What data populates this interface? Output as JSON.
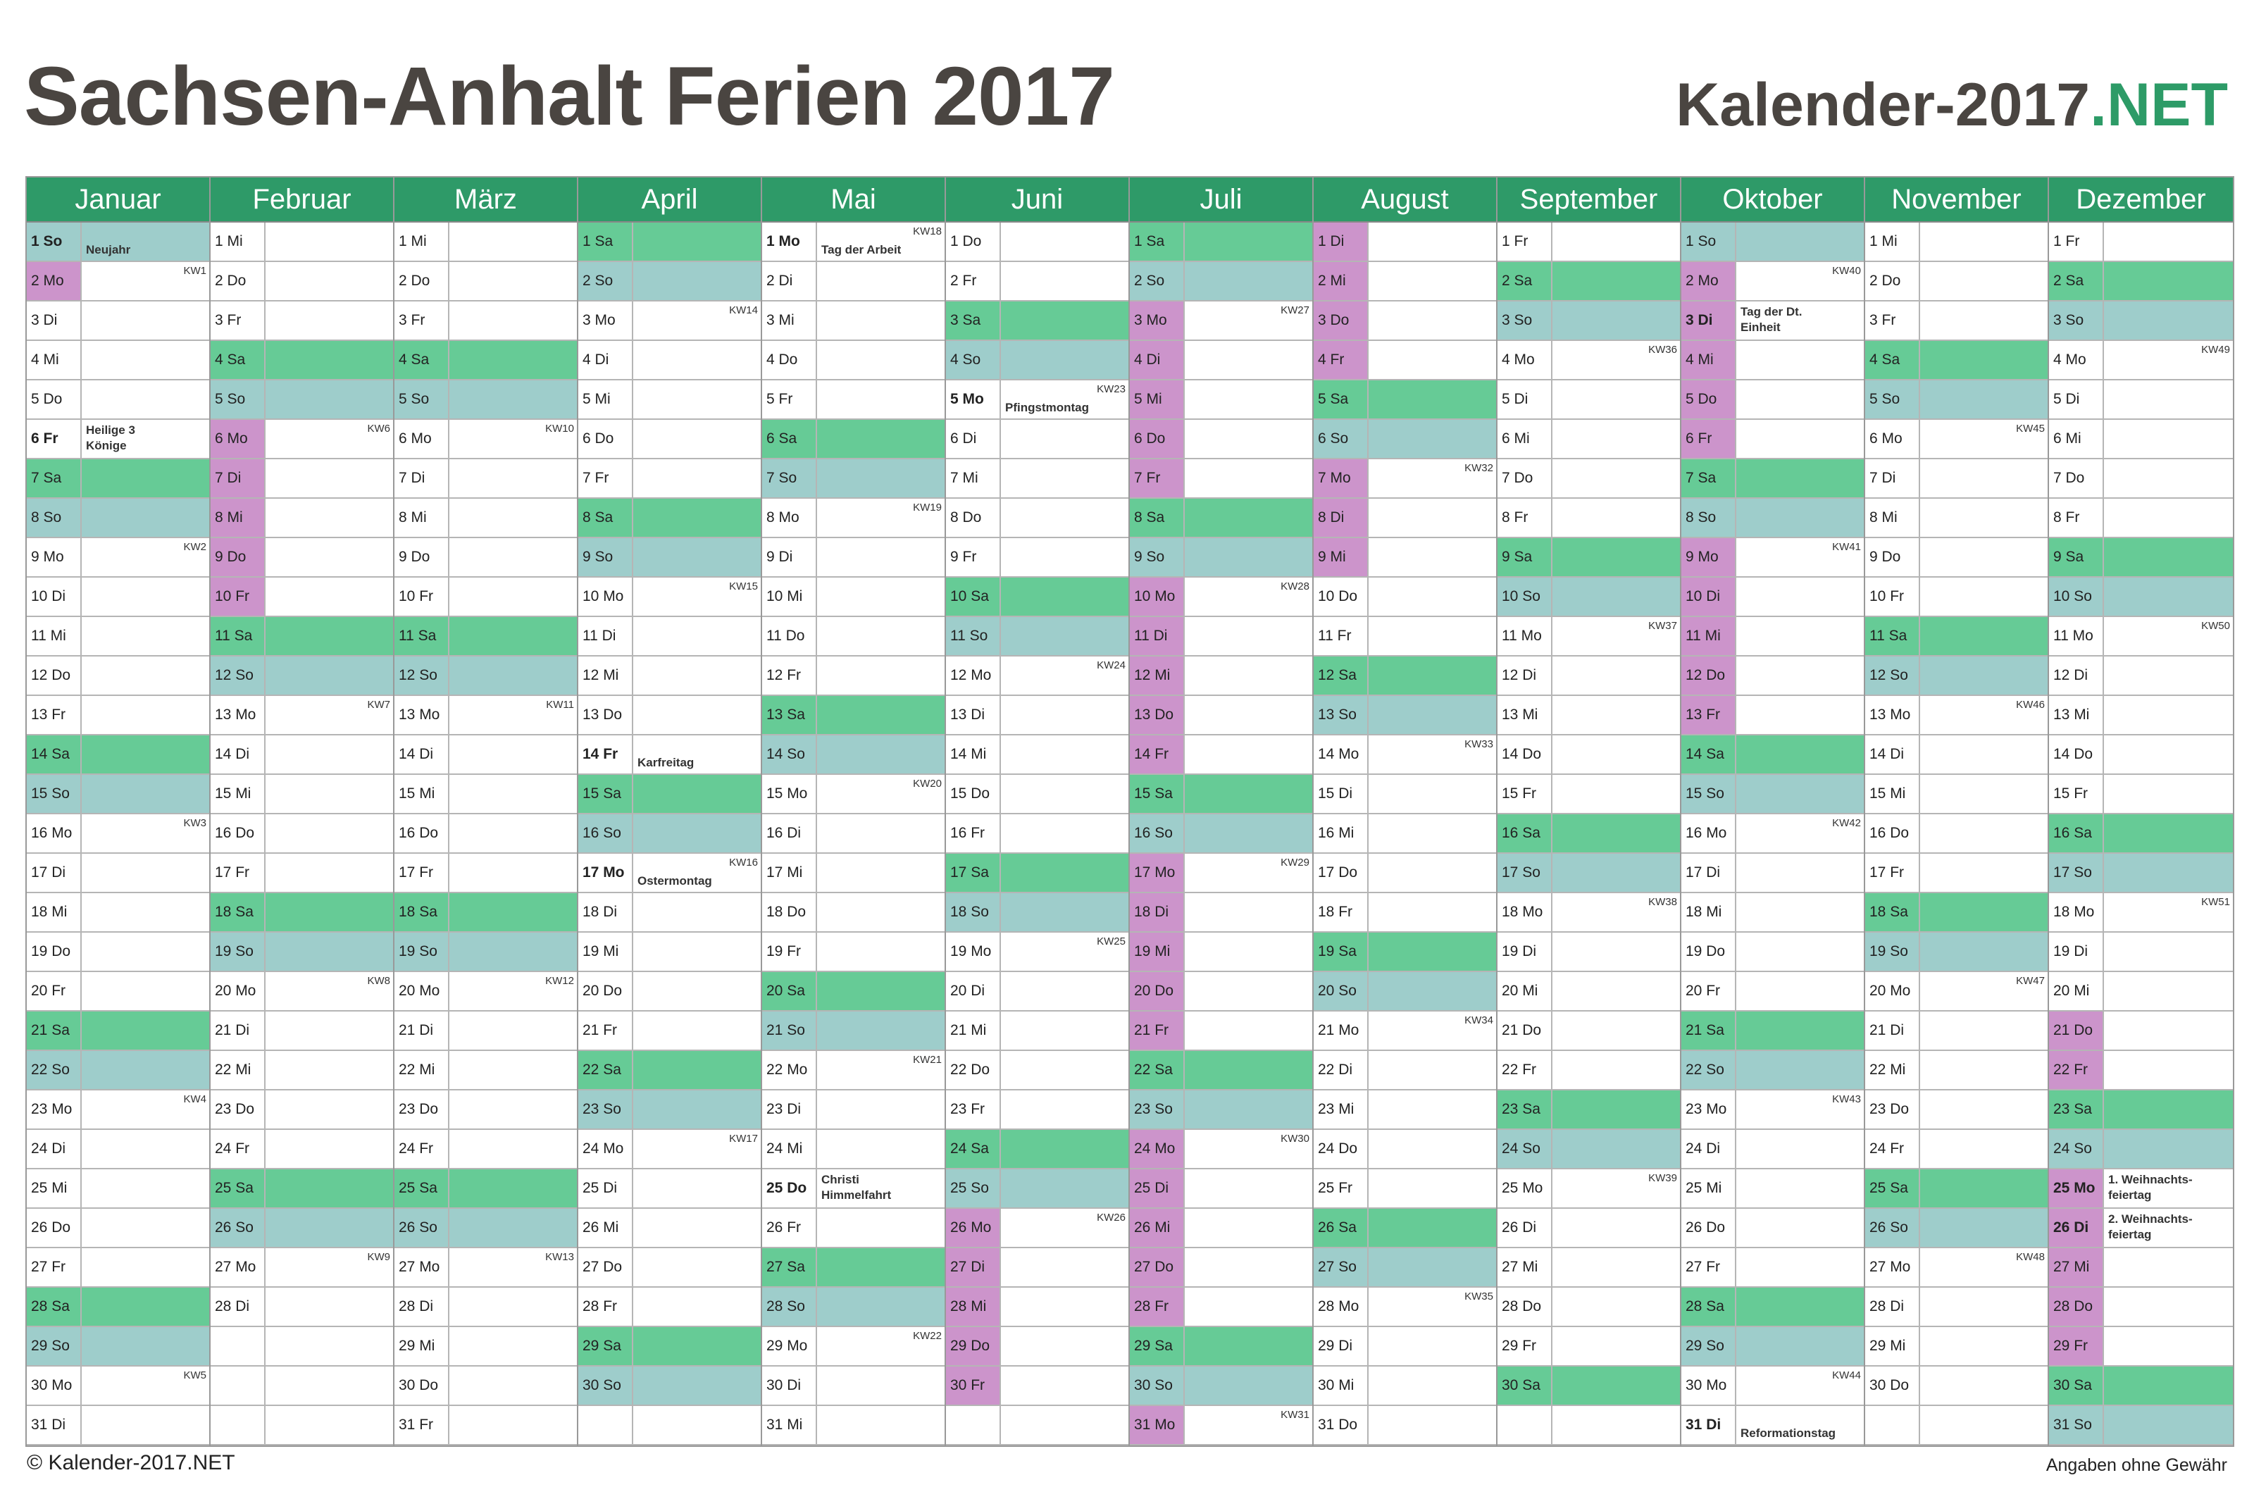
{
  "title": "Sachsen-Anhalt Ferien 2017",
  "brand": {
    "main": "Kalender-2017",
    "suffix": ".NET"
  },
  "footer": {
    "copyright": "© Kalender-2017.NET",
    "disclaimer": "Angaben ohne Gewähr"
  },
  "colors": {
    "header": "#2e9a68",
    "saturday": "#66cb96",
    "sunday": "#9ecdcb",
    "ferien": "#cc94cb",
    "brand_accent": "#2d9b67"
  },
  "months": [
    {
      "name": "Januar",
      "days": [
        "1 So",
        "2 Mo",
        "3 Di",
        "4 Mi",
        "5 Do",
        "6 Fr",
        "7 Sa",
        "8 So",
        "9 Mo",
        "10 Di",
        "11 Mi",
        "12 Do",
        "13 Fr",
        "14 Sa",
        "15 So",
        "16 Mo",
        "17 Di",
        "18 Mi",
        "19 Do",
        "20 Fr",
        "21 Sa",
        "22 So",
        "23 Mo",
        "24 Di",
        "25 Mi",
        "26 Do",
        "27 Fr",
        "28 Sa",
        "29 So",
        "30 Mo",
        "31 Di"
      ],
      "week_labels": {
        "2": "KW1",
        "9": "KW2",
        "16": "KW3",
        "23": "KW4",
        "30": "KW5"
      },
      "holidays": {
        "1": "Neujahr",
        "6": "Heilige 3\nKönige"
      },
      "ferien": [
        2
      ]
    },
    {
      "name": "Februar",
      "days": [
        "1 Mi",
        "2 Do",
        "3 Fr",
        "4 Sa",
        "5 So",
        "6 Mo",
        "7 Di",
        "8 Mi",
        "9 Do",
        "10 Fr",
        "11 Sa",
        "12 So",
        "13 Mo",
        "14 Di",
        "15 Mi",
        "16 Do",
        "17 Fr",
        "18 Sa",
        "19 So",
        "20 Mo",
        "21 Di",
        "22 Mi",
        "23 Do",
        "24 Fr",
        "25 Sa",
        "26 So",
        "27 Mo",
        "28 Di"
      ],
      "week_labels": {
        "6": "KW6",
        "13": "KW7",
        "20": "KW8",
        "27": "KW9"
      },
      "holidays": {},
      "ferien": [
        6,
        7,
        8,
        9,
        10
      ]
    },
    {
      "name": "März",
      "days": [
        "1 Mi",
        "2 Do",
        "3 Fr",
        "4 Sa",
        "5 So",
        "6 Mo",
        "7 Di",
        "8 Mi",
        "9 Do",
        "10 Fr",
        "11 Sa",
        "12 So",
        "13 Mo",
        "14 Di",
        "15 Mi",
        "16 Do",
        "17 Fr",
        "18 Sa",
        "19 So",
        "20 Mo",
        "21 Di",
        "22 Mi",
        "23 Do",
        "24 Fr",
        "25 Sa",
        "26 So",
        "27 Mo",
        "28 Di",
        "29 Mi",
        "30 Do",
        "31 Fr"
      ],
      "week_labels": {
        "6": "KW10",
        "13": "KW11",
        "20": "KW12",
        "27": "KW13"
      },
      "holidays": {},
      "ferien": []
    },
    {
      "name": "April",
      "days": [
        "1 Sa",
        "2 So",
        "3 Mo",
        "4 Di",
        "5 Mi",
        "6 Do",
        "7 Fr",
        "8 Sa",
        "9 So",
        "10 Mo",
        "11 Di",
        "12 Mi",
        "13 Do",
        "14 Fr",
        "15 Sa",
        "16 So",
        "17 Mo",
        "18 Di",
        "19 Mi",
        "20 Do",
        "21 Fr",
        "22 Sa",
        "23 So",
        "24 Mo",
        "25 Di",
        "26 Mi",
        "27 Do",
        "28 Fr",
        "29 Sa",
        "30 So"
      ],
      "week_labels": {
        "3": "KW14",
        "10": "KW15",
        "17": "KW16",
        "24": "KW17"
      },
      "holidays": {
        "14": "Karfreitag",
        "17": "Ostermontag"
      },
      "ferien": []
    },
    {
      "name": "Mai",
      "days": [
        "1 Mo",
        "2 Di",
        "3 Mi",
        "4 Do",
        "5 Fr",
        "6 Sa",
        "7 So",
        "8 Mo",
        "9 Di",
        "10 Mi",
        "11 Do",
        "12 Fr",
        "13 Sa",
        "14 So",
        "15 Mo",
        "16 Di",
        "17 Mi",
        "18 Do",
        "19 Fr",
        "20 Sa",
        "21 So",
        "22 Mo",
        "23 Di",
        "24 Mi",
        "25 Do",
        "26 Fr",
        "27 Sa",
        "28 So",
        "29 Mo",
        "30 Di",
        "31 Mi"
      ],
      "week_labels": {
        "1": "KW18",
        "8": "KW19",
        "15": "KW20",
        "22": "KW21",
        "29": "KW22"
      },
      "holidays": {
        "1": "Tag der Arbeit",
        "25": "Christi\nHimmelfahrt"
      },
      "ferien": []
    },
    {
      "name": "Juni",
      "days": [
        "1 Do",
        "2 Fr",
        "3 Sa",
        "4 So",
        "5 Mo",
        "6 Di",
        "7 Mi",
        "8 Do",
        "9 Fr",
        "10 Sa",
        "11 So",
        "12 Mo",
        "13 Di",
        "14 Mi",
        "15 Do",
        "16 Fr",
        "17 Sa",
        "18 So",
        "19 Mo",
        "20 Di",
        "21 Mi",
        "22 Do",
        "23 Fr",
        "24 Sa",
        "25 So",
        "26 Mo",
        "27 Di",
        "28 Mi",
        "29 Do",
        "30 Fr"
      ],
      "week_labels": {
        "5": "KW23",
        "12": "KW24",
        "19": "KW25",
        "26": "KW26"
      },
      "holidays": {
        "5": "Pfingstmontag"
      },
      "ferien": [
        26,
        27,
        28,
        29,
        30
      ]
    },
    {
      "name": "Juli",
      "days": [
        "1 Sa",
        "2 So",
        "3 Mo",
        "4 Di",
        "5 Mi",
        "6 Do",
        "7 Fr",
        "8 Sa",
        "9 So",
        "10 Mo",
        "11 Di",
        "12 Mi",
        "13 Do",
        "14 Fr",
        "15 Sa",
        "16 So",
        "17 Mo",
        "18 Di",
        "19 Mi",
        "20 Do",
        "21 Fr",
        "22 Sa",
        "23 So",
        "24 Mo",
        "25 Di",
        "26 Mi",
        "27 Do",
        "28 Fr",
        "29 Sa",
        "30 So",
        "31 Mo"
      ],
      "week_labels": {
        "3": "KW27",
        "10": "KW28",
        "17": "KW29",
        "24": "KW30",
        "31": "KW31"
      },
      "holidays": {},
      "ferien": [
        3,
        4,
        5,
        6,
        7,
        10,
        11,
        12,
        13,
        14,
        17,
        18,
        19,
        20,
        21,
        24,
        25,
        26,
        27,
        28,
        31
      ]
    },
    {
      "name": "August",
      "days": [
        "1 Di",
        "2 Mi",
        "3 Do",
        "4 Fr",
        "5 Sa",
        "6 So",
        "7 Mo",
        "8 Di",
        "9 Mi",
        "10 Do",
        "11 Fr",
        "12 Sa",
        "13 So",
        "14 Mo",
        "15 Di",
        "16 Mi",
        "17 Do",
        "18 Fr",
        "19 Sa",
        "20 So",
        "21 Mo",
        "22 Di",
        "23 Mi",
        "24 Do",
        "25 Fr",
        "26 Sa",
        "27 So",
        "28 Mo",
        "29 Di",
        "30 Mi",
        "31 Do"
      ],
      "week_labels": {
        "7": "KW32",
        "14": "KW33",
        "21": "KW34",
        "28": "KW35"
      },
      "holidays": {},
      "ferien": [
        1,
        2,
        3,
        4,
        7,
        8,
        9
      ]
    },
    {
      "name": "September",
      "days": [
        "1 Fr",
        "2 Sa",
        "3 So",
        "4 Mo",
        "5 Di",
        "6 Mi",
        "7 Do",
        "8 Fr",
        "9 Sa",
        "10 So",
        "11 Mo",
        "12 Di",
        "13 Mi",
        "14 Do",
        "15 Fr",
        "16 Sa",
        "17 So",
        "18 Mo",
        "19 Di",
        "20 Mi",
        "21 Do",
        "22 Fr",
        "23 Sa",
        "24 So",
        "25 Mo",
        "26 Di",
        "27 Mi",
        "28 Do",
        "29 Fr",
        "30 Sa"
      ],
      "week_labels": {
        "4": "KW36",
        "11": "KW37",
        "18": "KW38",
        "25": "KW39"
      },
      "holidays": {},
      "ferien": []
    },
    {
      "name": "Oktober",
      "days": [
        "1 So",
        "2 Mo",
        "3 Di",
        "4 Mi",
        "5 Do",
        "6 Fr",
        "7 Sa",
        "8 So",
        "9 Mo",
        "10 Di",
        "11 Mi",
        "12 Do",
        "13 Fr",
        "14 Sa",
        "15 So",
        "16 Mo",
        "17 Di",
        "18 Mi",
        "19 Do",
        "20 Fr",
        "21 Sa",
        "22 So",
        "23 Mo",
        "24 Di",
        "25 Mi",
        "26 Do",
        "27 Fr",
        "28 Sa",
        "29 So",
        "30 Mo",
        "31 Di"
      ],
      "week_labels": {
        "2": "KW40",
        "9": "KW41",
        "16": "KW42",
        "23": "KW43",
        "30": "KW44"
      },
      "holidays": {
        "3": "Tag der Dt.\nEinheit",
        "31": "Reformationstag"
      },
      "ferien": [
        2,
        3,
        4,
        5,
        6,
        9,
        10,
        11,
        12,
        13
      ]
    },
    {
      "name": "November",
      "days": [
        "1 Mi",
        "2 Do",
        "3 Fr",
        "4 Sa",
        "5 So",
        "6 Mo",
        "7 Di",
        "8 Mi",
        "9 Do",
        "10 Fr",
        "11 Sa",
        "12 So",
        "13 Mo",
        "14 Di",
        "15 Mi",
        "16 Do",
        "17 Fr",
        "18 Sa",
        "19 So",
        "20 Mo",
        "21 Di",
        "22 Mi",
        "23 Do",
        "24 Fr",
        "25 Sa",
        "26 So",
        "27 Mo",
        "28 Di",
        "29 Mi",
        "30 Do"
      ],
      "week_labels": {
        "6": "KW45",
        "13": "KW46",
        "20": "KW47",
        "27": "KW48"
      },
      "holidays": {},
      "ferien": []
    },
    {
      "name": "Dezember",
      "days": [
        "1 Fr",
        "2 Sa",
        "3 So",
        "4 Mo",
        "5 Di",
        "6 Mi",
        "7 Do",
        "8 Fr",
        "9 Sa",
        "10 So",
        "11 Mo",
        "12 Di",
        "13 Mi",
        "14 Do",
        "15 Fr",
        "16 Sa",
        "17 So",
        "18 Mo",
        "19 Di",
        "20 Mi",
        "21 Do",
        "22 Fr",
        "23 Sa",
        "24 So",
        "25 Mo",
        "26 Di",
        "27 Mi",
        "28 Do",
        "29 Fr",
        "30 Sa",
        "31 So"
      ],
      "week_labels": {
        "4": "KW49",
        "11": "KW50",
        "18": "KW51"
      },
      "holidays": {
        "25": "1. Weihnachts-\nfeiertag",
        "26": "2. Weihnachts-\nfeiertag"
      },
      "ferien": [
        21,
        22,
        25,
        26,
        27,
        28,
        29
      ]
    }
  ]
}
